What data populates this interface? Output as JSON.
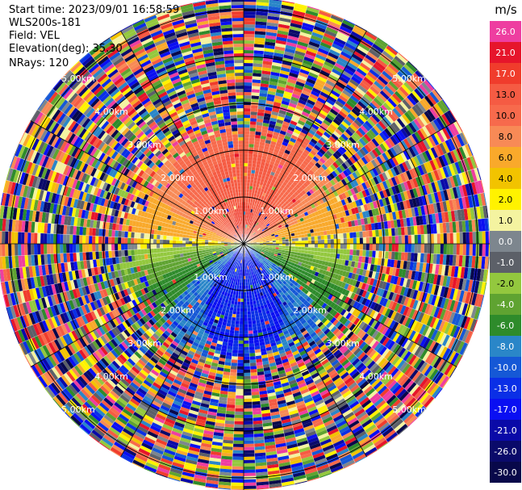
{
  "header": {
    "start_time": "Start time: 2023/09/01 16:58:59",
    "instrument": "WLS200s-181",
    "field": "Field: VEL",
    "elevation": "Elevation(deg): 35.30",
    "nrays": "NRays: 120"
  },
  "range_labels": [
    "1.00km",
    "2.00km",
    "3.00km",
    "4.00km",
    "5.00km"
  ],
  "colorbar": {
    "unit": "m/s",
    "entries": [
      {
        "label": "26.0",
        "color": "#ee3ea0"
      },
      {
        "label": "21.0",
        "color": "#e6152b"
      },
      {
        "label": "17.0",
        "color": "#f03c2c"
      },
      {
        "label": "13.0",
        "color": "#f55b43"
      },
      {
        "label": "10.0",
        "color": "#f76a4c"
      },
      {
        "label": "8.0",
        "color": "#f88a56"
      },
      {
        "label": "6.0",
        "color": "#f9a92b"
      },
      {
        "label": "4.0",
        "color": "#f2c300"
      },
      {
        "label": "2.0",
        "color": "#fff200"
      },
      {
        "label": "1.0",
        "color": "#f4f3a0"
      },
      {
        "label": "0.0",
        "color": "#7d868e"
      },
      {
        "label": "-1.0",
        "color": "#5c6068"
      },
      {
        "label": "-2.0",
        "color": "#93c83e"
      },
      {
        "label": "-4.0",
        "color": "#5fa331"
      },
      {
        "label": "-6.0",
        "color": "#2e8b2b"
      },
      {
        "label": "-8.0",
        "color": "#2a86c8"
      },
      {
        "label": "-10.0",
        "color": "#1558d6"
      },
      {
        "label": "-13.0",
        "color": "#0a2fe6"
      },
      {
        "label": "-17.0",
        "color": "#0a0ff2"
      },
      {
        "label": "-21.0",
        "color": "#0a0aa8"
      },
      {
        "label": "-26.0",
        "color": "#0a0a6a"
      },
      {
        "label": "-30.0",
        "color": "#08084a"
      }
    ]
  },
  "colors": {
    "range_ring": "#000000",
    "rays": "#ffffff"
  }
}
